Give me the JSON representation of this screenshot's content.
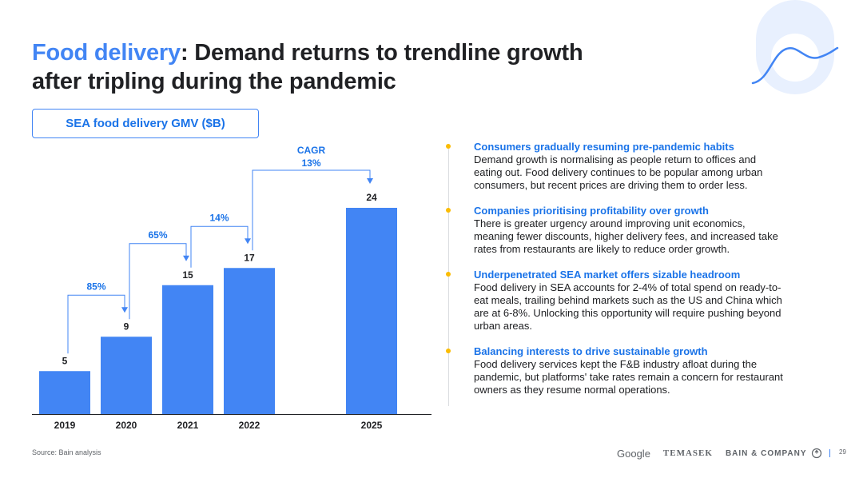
{
  "slide": {
    "title_accent": "Food delivery",
    "title_rest": ": Demand returns to trendline growth after tripling during the pandemic",
    "chart_label": "SEA food delivery GMV ($B)",
    "source": "Source: Bain analysis",
    "page_number": "29",
    "logos": {
      "google": "Google",
      "temasek": "TEMASEK",
      "bain": "BAIN & COMPANY"
    }
  },
  "colors": {
    "accent": "#4285f4",
    "bar": "#4285f4",
    "bullet": "#fbbc04",
    "heading": "#1a73e8"
  },
  "chart_data": {
    "type": "bar",
    "categories": [
      "2019",
      "2020",
      "2021",
      "2022",
      "2025"
    ],
    "values": [
      5,
      9,
      15,
      17,
      24
    ],
    "value_labels": [
      "5",
      "9",
      "15",
      "17",
      "24"
    ],
    "growth_annotations": [
      {
        "from": "2019",
        "to": "2020",
        "label": "85%"
      },
      {
        "from": "2020",
        "to": "2021",
        "label": "65%"
      },
      {
        "from": "2021",
        "to": "2022",
        "label": "14%"
      },
      {
        "from": "2022",
        "to": "2025",
        "label_line1": "CAGR",
        "label_line2": "13%"
      }
    ],
    "ylim": [
      0,
      24
    ]
  },
  "points": [
    {
      "heading": "Consumers gradually resuming pre-pandemic habits",
      "body": "Demand growth is normalising as people return to offices and eating out. Food delivery continues to be popular among urban consumers, but recent prices are driving them to order less."
    },
    {
      "heading": "Companies prioritising profitability over growth",
      "body": "There is greater urgency around improving unit economics, meaning fewer discounts, higher delivery fees, and increased take rates from restaurants are likely to reduce order growth."
    },
    {
      "heading": "Underpenetrated SEA market offers sizable headroom",
      "body": "Food delivery in SEA accounts for 2-4% of total spend on ready-to-eat meals, trailing behind markets such as the US and China which are at 6-8%. Unlocking this opportunity will require pushing beyond urban areas."
    },
    {
      "heading": "Balancing interests to drive sustainable growth",
      "body": "Food delivery services kept the F&B industry afloat during the pandemic, but platforms' take rates remain a concern for restaurant owners as they resume normal operations."
    }
  ]
}
